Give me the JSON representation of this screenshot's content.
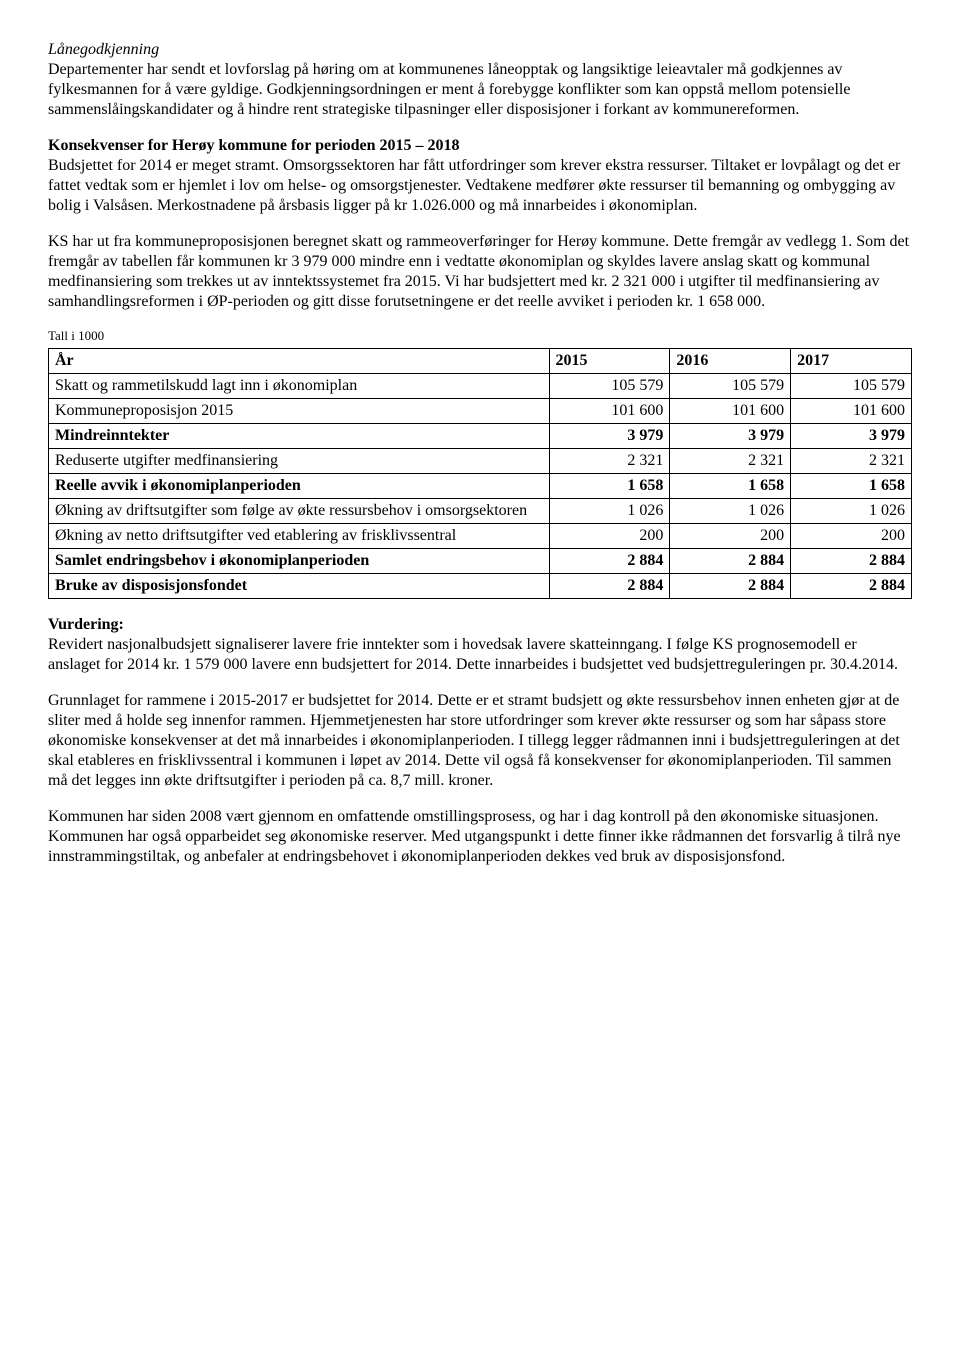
{
  "h1": "Lånegodkjenning",
  "p1": "Departementer har sendt et lovforslag på høring om at kommunenes låneopptak og langsiktige leieavtaler må godkjennes av fylkesmannen for å være gyldige. Godkjenningsordningen er ment å forebygge konflikter som kan oppstå mellom potensielle sammenslåingskandidater og å hindre rent strategiske tilpasninger eller disposisjoner i forkant av kommunereformen.",
  "h2": "Konsekvenser for Herøy kommune for perioden 2015 – 2018",
  "p2": "Budsjettet for 2014 er meget stramt. Omsorgssektoren har fått utfordringer som krever ekstra ressurser. Tiltaket er lovpålagt og det er fattet vedtak som er hjemlet i lov om helse- og omsorgstjenester. Vedtakene medfører økte ressurser til bemanning og ombygging av bolig i Valsåsen.  Merkostnadene på årsbasis ligger på kr 1.026.000 og må innarbeides i økonomiplan.",
  "p3": "KS har ut fra kommuneproposisjonen beregnet skatt og rammeoverføringer for Herøy kommune. Dette fremgår av vedlegg 1. Som det fremgår av tabellen får kommunen kr 3 979 000 mindre enn i vedtatte økonomiplan og skyldes lavere anslag skatt og kommunal medfinansiering som trekkes ut av inntektssystemet fra 2015. Vi har budsjettert med kr. 2 321 000 i utgifter til medfinansiering av samhandlingsreformen i ØP-perioden og gitt disse forutsetningene er det reelle avviket i perioden kr. 1 658 000.",
  "tall_note": "Tall i 1000",
  "table": {
    "header": {
      "c0": "År",
      "c1": "2015",
      "c2": "2016",
      "c3": "2017"
    },
    "rows": [
      {
        "label": "Skatt og rammetilskudd lagt inn i økonomiplan",
        "v1": "105 579",
        "v2": "105 579",
        "v3": "105 579",
        "bold": false
      },
      {
        "label": "Kommuneproposisjon 2015",
        "v1": "101 600",
        "v2": "101 600",
        "v3": "101 600",
        "bold": false
      },
      {
        "label": "Mindreinntekter",
        "v1": "3 979",
        "v2": "3 979",
        "v3": "3 979",
        "bold": true
      },
      {
        "label": "Reduserte utgifter medfinansiering",
        "v1": "2 321",
        "v2": "2 321",
        "v3": "2 321",
        "bold": false
      },
      {
        "label": "Reelle avvik i økonomiplanperioden",
        "v1": "1 658",
        "v2": "1 658",
        "v3": "1 658",
        "bold": true
      },
      {
        "label": "Økning av driftsutgifter som følge av økte ressursbehov i omsorgsektoren",
        "v1": "1 026",
        "v2": "1 026",
        "v3": "1 026",
        "bold": false
      },
      {
        "label": "Økning av netto driftsutgifter ved etablering av frisklivssentral",
        "v1": "200",
        "v2": "200",
        "v3": "200",
        "bold": false
      },
      {
        "label": "Samlet endringsbehov i økonomiplanperioden",
        "v1": "2 884",
        "v2": "2 884",
        "v3": "2 884",
        "bold": true
      },
      {
        "label": "Bruke av disposisjonsfondet",
        "v1": "2 884",
        "v2": "2 884",
        "v3": "2 884",
        "bold": true
      }
    ],
    "col_widths": [
      "58%",
      "14%",
      "14%",
      "14%"
    ]
  },
  "vurdering_h": "Vurdering:",
  "p4": "Revidert nasjonalbudsjett signaliserer lavere frie inntekter som i hovedsak lavere skatteinngang. I følge KS prognosemodell er anslaget for 2014 kr. 1 579 000 lavere enn budsjettert for 2014. Dette innarbeides i budsjettet ved budsjettreguleringen pr. 30.4.2014.",
  "p5": "Grunnlaget for rammene i 2015-2017 er budsjettet for 2014. Dette er et stramt budsjett og økte ressursbehov innen enheten gjør at de sliter med å holde seg innenfor rammen. Hjemmetjenesten har store utfordringer som krever økte ressurser og som har såpass store økonomiske konsekvenser at det må innarbeides i økonomiplanperioden. I tillegg legger rådmannen inni i budsjettreguleringen at det skal etableres en frisklivssentral i kommunen i løpet av 2014.  Dette vil også få konsekvenser for økonomiplanperioden.  Til sammen må det legges inn økte driftsutgifter i perioden på ca. 8,7 mill. kroner.",
  "p6": "Kommunen har siden 2008 vært gjennom en omfattende omstillingsprosess, og har i dag kontroll på den økonomiske situasjonen.  Kommunen har også opparbeidet seg økonomiske reserver.  Med utgangspunkt i dette finner ikke rådmannen det forsvarlig å tilrå nye innstrammingstiltak, og anbefaler at endringsbehovet i økonomiplanperioden dekkes ved bruk av disposisjonsfond."
}
